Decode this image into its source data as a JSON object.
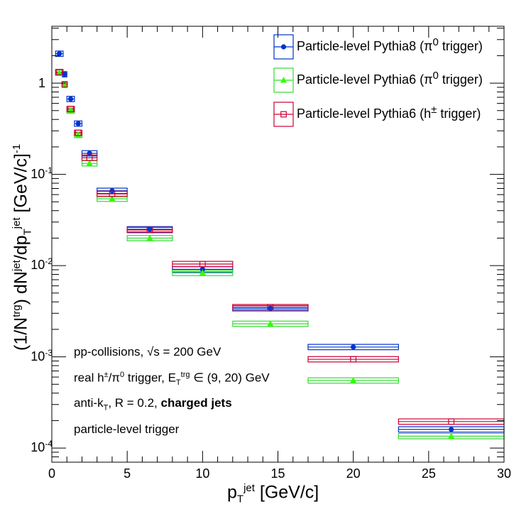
{
  "chart_data": {
    "type": "scatter",
    "x_title_html": "p<sub>T</sub><sup>jet</sup> [GeV/c]",
    "y_title_html": "(1/N<sup>trg</sup>) dN<sup>jet</sup>/dp<sub>T</sub><sup>jet</sup> [GeV/c]<sup>-1</sup>",
    "xlim": [
      0,
      30
    ],
    "ylim": [
      7e-05,
      4.2
    ],
    "y_scale": "log",
    "x_ticks": [
      0,
      5,
      10,
      15,
      20,
      25,
      30
    ],
    "x_tick_labels": [
      "0",
      "5",
      "10",
      "15",
      "20",
      "25",
      "30"
    ],
    "y_ticks": [
      0.0001,
      0.001,
      0.01,
      0.1,
      1
    ],
    "y_tick_labels": [
      "10-4",
      "10-3",
      "10-2",
      "10-1",
      "1"
    ],
    "legend_position": "top-right",
    "series": [
      {
        "name": "Particle-level Pythia8 (π0 trigger)",
        "color": "#0033cc",
        "marker": "filled-circle",
        "box_color": "#0033cc",
        "points": [
          {
            "x": 0.5,
            "y": 2.1,
            "xlo": 0.25,
            "xhi": 0.75
          },
          {
            "x": 0.85,
            "y": 1.25,
            "xlo": 0.7,
            "xhi": 1.0
          },
          {
            "x": 1.25,
            "y": 0.67,
            "xlo": 1.0,
            "xhi": 1.5
          },
          {
            "x": 1.75,
            "y": 0.36,
            "xlo": 1.5,
            "xhi": 2.0
          },
          {
            "x": 2.5,
            "y": 0.17,
            "xlo": 2.0,
            "xhi": 3.0
          },
          {
            "x": 4.0,
            "y": 0.066,
            "xlo": 3.0,
            "xhi": 5.0
          },
          {
            "x": 6.5,
            "y": 0.025,
            "xlo": 5.0,
            "xhi": 8.0
          },
          {
            "x": 10.0,
            "y": 0.0091,
            "xlo": 8.0,
            "xhi": 12.0
          },
          {
            "x": 14.5,
            "y": 0.0034,
            "xlo": 12.0,
            "xhi": 17.0
          },
          {
            "x": 20.0,
            "y": 0.00128,
            "xlo": 17.0,
            "xhi": 23.0
          },
          {
            "x": 26.5,
            "y": 0.00016,
            "xlo": 23.0,
            "xhi": 30.0
          }
        ]
      },
      {
        "name": "Particle-level Pythia6 (π0 trigger)",
        "color": "#33ff00",
        "marker": "filled-triangle",
        "box_color": "#33dd33",
        "points": [
          {
            "x": 0.5,
            "y": 1.3,
            "xlo": 0.25,
            "xhi": 0.75
          },
          {
            "x": 0.85,
            "y": 0.96,
            "xlo": 0.7,
            "xhi": 1.0
          },
          {
            "x": 1.25,
            "y": 0.5,
            "xlo": 1.0,
            "xhi": 1.5
          },
          {
            "x": 1.75,
            "y": 0.27,
            "xlo": 1.5,
            "xhi": 2.0
          },
          {
            "x": 2.5,
            "y": 0.132,
            "xlo": 2.0,
            "xhi": 3.0
          },
          {
            "x": 4.0,
            "y": 0.054,
            "xlo": 3.0,
            "xhi": 5.0
          },
          {
            "x": 6.5,
            "y": 0.02,
            "xlo": 5.0,
            "xhi": 8.0
          },
          {
            "x": 10.0,
            "y": 0.0083,
            "xlo": 8.0,
            "xhi": 12.0
          },
          {
            "x": 14.5,
            "y": 0.0023,
            "xlo": 12.0,
            "xhi": 17.0
          },
          {
            "x": 20.0,
            "y": 0.00055,
            "xlo": 17.0,
            "xhi": 23.0
          },
          {
            "x": 26.5,
            "y": 0.000135,
            "xlo": 23.0,
            "xhi": 30.0
          }
        ]
      },
      {
        "name": "Particle-level Pythia6 (h± trigger)",
        "color": "#cc0033",
        "marker": "open-square",
        "box_color": "#cc0033",
        "points": [
          {
            "x": 0.5,
            "y": 1.32,
            "xlo": 0.25,
            "xhi": 0.75
          },
          {
            "x": 0.85,
            "y": 0.97,
            "xlo": 0.7,
            "xhi": 1.0
          },
          {
            "x": 1.25,
            "y": 0.52,
            "xlo": 1.0,
            "xhi": 1.5
          },
          {
            "x": 1.75,
            "y": 0.285,
            "xlo": 1.5,
            "xhi": 2.0
          },
          {
            "x": 2.5,
            "y": 0.152,
            "xlo": 2.0,
            "xhi": 3.0
          },
          {
            "x": 4.0,
            "y": 0.061,
            "xlo": 3.0,
            "xhi": 5.0
          },
          {
            "x": 6.5,
            "y": 0.0245,
            "xlo": 5.0,
            "xhi": 8.0
          },
          {
            "x": 10.0,
            "y": 0.0104,
            "xlo": 8.0,
            "xhi": 12.0
          },
          {
            "x": 14.5,
            "y": 0.0035,
            "xlo": 12.0,
            "xhi": 17.0
          },
          {
            "x": 20.0,
            "y": 0.00094,
            "xlo": 17.0,
            "xhi": 23.0
          },
          {
            "x": 26.5,
            "y": 0.000195,
            "xlo": 23.0,
            "xhi": 30.0
          }
        ]
      }
    ],
    "legend_html": [
      "Particle-level Pythia8 (π<sup>0</sup> trigger)",
      "Particle-level Pythia6 (π<sup>0</sup> trigger)",
      "Particle-level Pythia6 (h<sup>±</sup> trigger)"
    ],
    "annotations_html": [
      "pp-collisions, √s = 200 GeV",
      "real h<sup>±</sup>/π<sup>0</sup> trigger, E<sub>T</sub><sup>trg</sup> ∈ (9, 20) GeV",
      "anti-k<sub>T</sub>, R = 0.2, <b>charged jets</b>",
      "particle-level trigger"
    ]
  }
}
